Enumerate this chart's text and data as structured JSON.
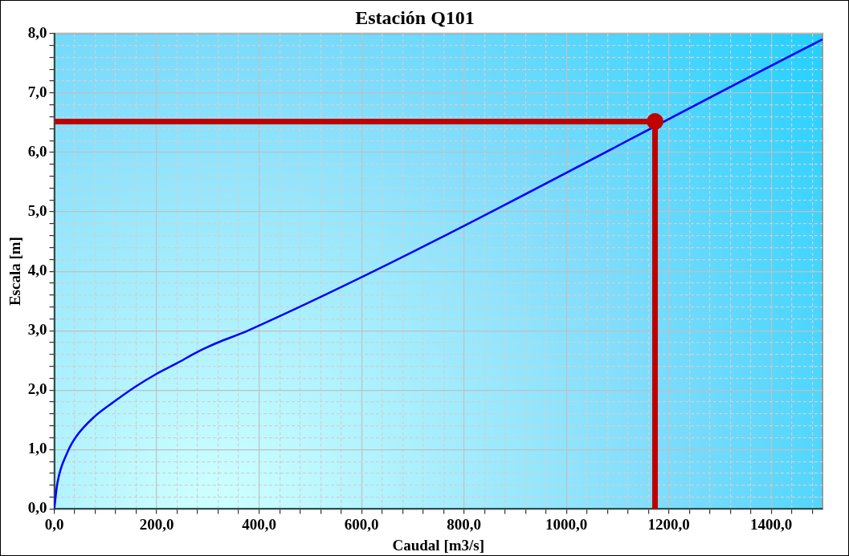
{
  "chart_data": {
    "type": "line",
    "title": "Estación Q101",
    "xlabel": "Caudal [m3/s]",
    "ylabel": "Escala [m]",
    "xlim": [
      0,
      1500
    ],
    "ylim": [
      0,
      8
    ],
    "xticks": [
      {
        "value": 0,
        "label": "0,0"
      },
      {
        "value": 40,
        "label": null
      },
      {
        "value": 80,
        "label": null
      },
      {
        "value": 120,
        "label": null
      },
      {
        "value": 160,
        "label": null
      },
      {
        "value": 200,
        "label": "200,0"
      },
      {
        "value": 240,
        "label": null
      },
      {
        "value": 280,
        "label": null
      },
      {
        "value": 320,
        "label": null
      },
      {
        "value": 360,
        "label": null
      },
      {
        "value": 400,
        "label": "400,0"
      },
      {
        "value": 440,
        "label": null
      },
      {
        "value": 480,
        "label": null
      },
      {
        "value": 520,
        "label": null
      },
      {
        "value": 560,
        "label": null
      },
      {
        "value": 600,
        "label": "600,0"
      },
      {
        "value": 640,
        "label": null
      },
      {
        "value": 680,
        "label": null
      },
      {
        "value": 720,
        "label": null
      },
      {
        "value": 760,
        "label": null
      },
      {
        "value": 800,
        "label": "800,0"
      },
      {
        "value": 840,
        "label": null
      },
      {
        "value": 880,
        "label": null
      },
      {
        "value": 920,
        "label": null
      },
      {
        "value": 960,
        "label": null
      },
      {
        "value": 1000,
        "label": "1000,0"
      },
      {
        "value": 1040,
        "label": null
      },
      {
        "value": 1080,
        "label": null
      },
      {
        "value": 1120,
        "label": null
      },
      {
        "value": 1160,
        "label": null
      },
      {
        "value": 1200,
        "label": "1200,0"
      },
      {
        "value": 1240,
        "label": null
      },
      {
        "value": 1280,
        "label": null
      },
      {
        "value": 1320,
        "label": null
      },
      {
        "value": 1360,
        "label": null
      },
      {
        "value": 1400,
        "label": "1400,0"
      },
      {
        "value": 1440,
        "label": null
      },
      {
        "value": 1480,
        "label": null
      }
    ],
    "yticks": [
      {
        "value": 0,
        "label": "0,0"
      },
      {
        "value": 0.2,
        "label": null
      },
      {
        "value": 0.4,
        "label": null
      },
      {
        "value": 0.6,
        "label": null
      },
      {
        "value": 0.8,
        "label": null
      },
      {
        "value": 1,
        "label": "1,0"
      },
      {
        "value": 1.2,
        "label": null
      },
      {
        "value": 1.4,
        "label": null
      },
      {
        "value": 1.6,
        "label": null
      },
      {
        "value": 1.8,
        "label": null
      },
      {
        "value": 2,
        "label": "2,0"
      },
      {
        "value": 2.2,
        "label": null
      },
      {
        "value": 2.4,
        "label": null
      },
      {
        "value": 2.6,
        "label": null
      },
      {
        "value": 2.8,
        "label": null
      },
      {
        "value": 3,
        "label": "3,0"
      },
      {
        "value": 3.2,
        "label": null
      },
      {
        "value": 3.4,
        "label": null
      },
      {
        "value": 3.6,
        "label": null
      },
      {
        "value": 3.8,
        "label": null
      },
      {
        "value": 4,
        "label": "4,0"
      },
      {
        "value": 4.2,
        "label": null
      },
      {
        "value": 4.4,
        "label": null
      },
      {
        "value": 4.6,
        "label": null
      },
      {
        "value": 4.8,
        "label": null
      },
      {
        "value": 5,
        "label": "5,0"
      },
      {
        "value": 5.2,
        "label": null
      },
      {
        "value": 5.4,
        "label": null
      },
      {
        "value": 5.6,
        "label": null
      },
      {
        "value": 5.8,
        "label": null
      },
      {
        "value": 6,
        "label": "6,0"
      },
      {
        "value": 6.2,
        "label": null
      },
      {
        "value": 6.4,
        "label": null
      },
      {
        "value": 6.6,
        "label": null
      },
      {
        "value": 6.8,
        "label": null
      },
      {
        "value": 7,
        "label": "7,0"
      },
      {
        "value": 7.2,
        "label": null
      },
      {
        "value": 7.4,
        "label": null
      },
      {
        "value": 7.6,
        "label": null
      },
      {
        "value": 7.8,
        "label": null
      },
      {
        "value": 8,
        "label": "8,0"
      }
    ],
    "grid": true,
    "legend": false,
    "series": [
      {
        "color": "#0000ff",
        "marker": "none",
        "line_style": "solid",
        "x": [
          0,
          6,
          25,
          43,
          78,
          116,
          159,
          199,
          239,
          279,
          319,
          378,
          1500
        ],
        "values": [
          0,
          0.43,
          0.94,
          1.22,
          1.55,
          1.8,
          2.06,
          2.27,
          2.45,
          2.64,
          2.8,
          3.0,
          7.9
        ]
      },
      {
        "color": "#c00000",
        "marker": "none",
        "line_style": "solid",
        "x": [
          0,
          1173,
          1173
        ],
        "values": [
          6.52,
          6.52,
          0
        ]
      },
      {
        "type": "scatter",
        "color": "#c00000",
        "marker": "circle",
        "x": [
          1173
        ],
        "values": [
          6.52
        ]
      }
    ]
  }
}
